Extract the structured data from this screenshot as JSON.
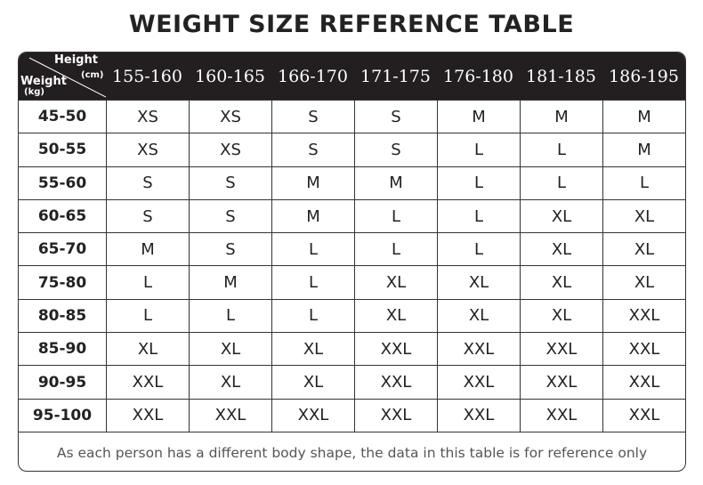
{
  "title": "WEIGHT SIZE REFERENCE TABLE",
  "corner": {
    "height_label": "Height",
    "height_unit": "(cm)",
    "weight_label": "Weight",
    "weight_unit": "(kg)"
  },
  "heights": [
    "155-160",
    "160-165",
    "166-170",
    "171-175",
    "176-180",
    "181-185",
    "186-195"
  ],
  "rows": [
    {
      "weight": "45-50",
      "sizes": [
        "XS",
        "XS",
        "S",
        "S",
        "M",
        "M",
        "M"
      ]
    },
    {
      "weight": "50-55",
      "sizes": [
        "XS",
        "XS",
        "S",
        "S",
        "L",
        "L",
        "M"
      ]
    },
    {
      "weight": "55-60",
      "sizes": [
        "S",
        "S",
        "M",
        "M",
        "L",
        "L",
        "L"
      ]
    },
    {
      "weight": "60-65",
      "sizes": [
        "S",
        "S",
        "M",
        "L",
        "L",
        "XL",
        "XL"
      ]
    },
    {
      "weight": "65-70",
      "sizes": [
        "M",
        "S",
        "L",
        "L",
        "L",
        "XL",
        "XL"
      ]
    },
    {
      "weight": "75-80",
      "sizes": [
        "L",
        "M",
        "L",
        "XL",
        "XL",
        "XL",
        "XL"
      ]
    },
    {
      "weight": "80-85",
      "sizes": [
        "L",
        "L",
        "L",
        "XL",
        "XL",
        "XL",
        "XXL"
      ]
    },
    {
      "weight": "85-90",
      "sizes": [
        "XL",
        "XL",
        "XL",
        "XXL",
        "XXL",
        "XXL",
        "XXL"
      ]
    },
    {
      "weight": "90-95",
      "sizes": [
        "XXL",
        "XL",
        "XL",
        "XXL",
        "XXL",
        "XXL",
        "XXL"
      ]
    },
    {
      "weight": "95-100",
      "sizes": [
        "XXL",
        "XXL",
        "XXL",
        "XXL",
        "XXL",
        "XXL",
        "XXL"
      ]
    }
  ],
  "note": "As each person has a different body shape, the data in this table is for reference only",
  "colors": {
    "header_bg": "#231f20",
    "header_text": "#ffffff",
    "border": "#333333",
    "note_text": "#555555"
  }
}
